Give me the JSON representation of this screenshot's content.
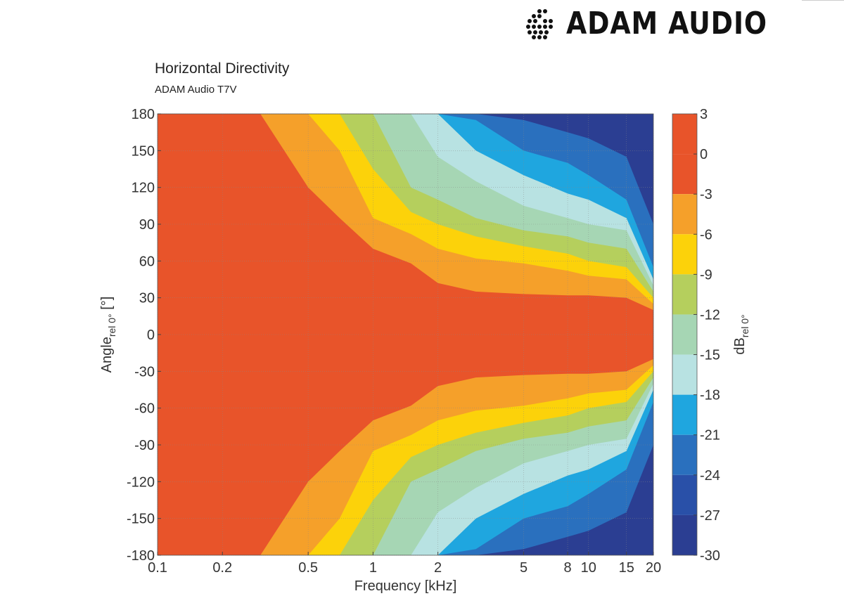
{
  "brand": {
    "name": "ADAM AUDIO",
    "logo_icon": "adam-audio-dot-logo-icon"
  },
  "chart_data": {
    "type": "heatmap",
    "title": "Horizontal Directivity",
    "subtitle": "ADAM Audio T7V",
    "xlabel": "Frequency [kHz]",
    "ylabel_main": "Angle",
    "ylabel_sub": "rel 0°",
    "ylabel_unit": " [°]",
    "colorbar_label_main": "dB",
    "colorbar_label_sub": "rel 0°",
    "x_scale": "log",
    "xlim": [
      0.1,
      20
    ],
    "ylim": [
      -180,
      180
    ],
    "x_ticks": [
      0.1,
      0.2,
      0.5,
      1,
      2,
      5,
      8,
      10,
      15,
      20
    ],
    "x_tick_labels": [
      "0.1",
      "0.2",
      "0.5",
      "1",
      "2",
      "5",
      "8",
      "10",
      "15",
      "20"
    ],
    "y_ticks": [
      180,
      150,
      120,
      90,
      60,
      30,
      0,
      -30,
      -60,
      -90,
      -120,
      -150,
      -180
    ],
    "y_tick_labels": [
      "180",
      "150",
      "120",
      "90",
      "60",
      "30",
      "0",
      "-30",
      "-60",
      "-90",
      "-120",
      "-150",
      "-180"
    ],
    "grid": true,
    "color_levels": [
      3,
      0,
      -3,
      -6,
      -9,
      -12,
      -15,
      -18,
      -21,
      -24,
      -27,
      -30
    ],
    "level_labels": [
      "3",
      "0",
      "-3",
      "-6",
      "-9",
      "-12",
      "-15",
      "-18",
      "-21",
      "-24",
      "-27",
      "-30"
    ],
    "band_colors": [
      "#e8542a",
      "#e8542a",
      "#f5a02a",
      "#fcd20a",
      "#b5cf5d",
      "#a6d6b4",
      "#b8e2e2",
      "#1fa6df",
      "#2a70be",
      "#2950a8",
      "#2b3e92"
    ],
    "contours": {
      "frequencies_khz": [
        0.1,
        0.2,
        0.3,
        0.5,
        0.7,
        1,
        1.5,
        2,
        3,
        5,
        8,
        10,
        15,
        20
      ],
      "angle_deg_at_level": [
        {
          "level": -3,
          "angles": [
            180,
            180,
            180,
            120,
            95,
            70,
            58,
            42,
            35,
            33,
            32,
            32,
            30,
            20
          ]
        },
        {
          "level": -6,
          "angles": [
            180,
            180,
            180,
            180,
            150,
            95,
            82,
            70,
            62,
            58,
            52,
            48,
            45,
            25
          ]
        },
        {
          "level": -9,
          "angles": [
            180,
            180,
            180,
            180,
            180,
            135,
            100,
            90,
            80,
            72,
            66,
            60,
            55,
            30
          ]
        },
        {
          "level": -12,
          "angles": [
            180,
            180,
            180,
            180,
            180,
            180,
            120,
            110,
            95,
            85,
            80,
            75,
            70,
            35
          ]
        },
        {
          "level": -15,
          "angles": [
            180,
            180,
            180,
            180,
            180,
            180,
            180,
            145,
            125,
            105,
            95,
            90,
            85,
            40
          ]
        },
        {
          "level": -18,
          "angles": [
            180,
            180,
            180,
            180,
            180,
            180,
            180,
            180,
            150,
            130,
            115,
            110,
            95,
            45
          ]
        },
        {
          "level": -21,
          "angles": [
            180,
            180,
            180,
            180,
            180,
            180,
            180,
            180,
            175,
            150,
            140,
            130,
            110,
            55
          ]
        },
        {
          "level": -24,
          "angles": [
            180,
            180,
            180,
            180,
            180,
            180,
            180,
            180,
            180,
            175,
            165,
            160,
            145,
            90
          ]
        }
      ]
    }
  }
}
